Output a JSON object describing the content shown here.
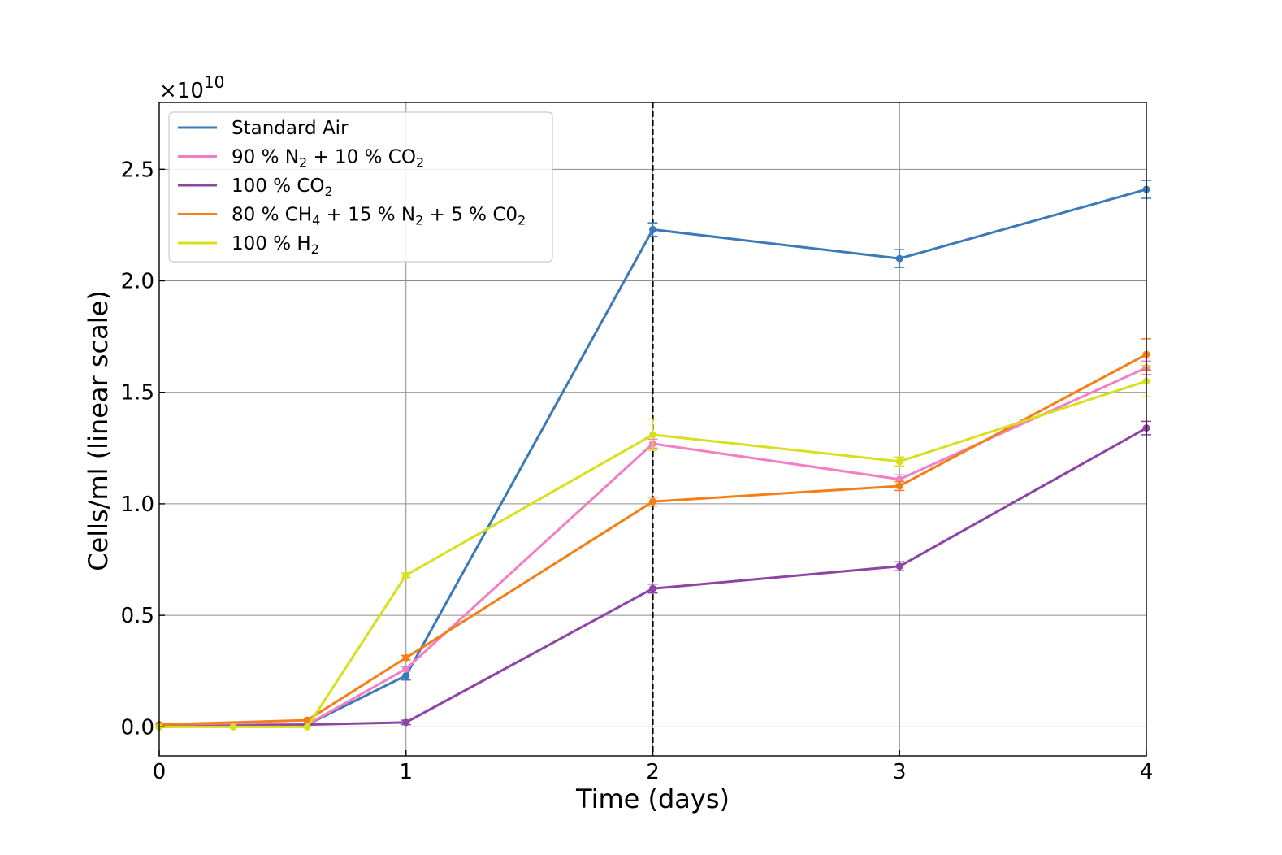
{
  "chart_data": {
    "type": "line",
    "title": "",
    "xlabel": "Time (days)",
    "ylabel": "Cells/ml (linear scale)",
    "y_multiplier_base": "×10",
    "y_multiplier_exp": "10",
    "xlim": [
      0,
      4
    ],
    "ylim": [
      -0.13,
      2.8
    ],
    "x_ticks": [
      0,
      1,
      2,
      3,
      4
    ],
    "x_tick_labels": [
      "0",
      "1",
      "2",
      "3",
      "4"
    ],
    "y_ticks": [
      0.0,
      0.5,
      1.0,
      1.5,
      2.0,
      2.5
    ],
    "y_tick_labels": [
      "0.0",
      "0.5",
      "1.0",
      "1.5",
      "2.0",
      "2.5"
    ],
    "grid": true,
    "vline_x": 2,
    "legend_position": "top-left",
    "series": [
      {
        "name": "Standard Air",
        "label": {
          "parts": [
            {
              "t": "Standard Air"
            }
          ]
        },
        "color": "#3a7ab8",
        "x": [
          0,
          0.6,
          1,
          2,
          3,
          4
        ],
        "values": [
          0.01,
          0.01,
          0.23,
          2.23,
          2.1,
          2.41
        ],
        "err": [
          0,
          0,
          0.02,
          0.03,
          0.04,
          0.04
        ]
      },
      {
        "name": "90 % N2 + 10 % CO2",
        "label": {
          "parts": [
            {
              "t": "90 % N"
            },
            {
              "t": "2",
              "sub": true
            },
            {
              "t": " + 10 % CO"
            },
            {
              "t": "2",
              "sub": true
            }
          ]
        },
        "color": "#f27fc6",
        "x": [
          0,
          0.6,
          1,
          2,
          3,
          4
        ],
        "values": [
          0.01,
          0.01,
          0.26,
          1.27,
          1.11,
          1.61
        ],
        "err": [
          0,
          0,
          0.01,
          0.02,
          0.02,
          0.03
        ]
      },
      {
        "name": "100 % CO2",
        "label": {
          "parts": [
            {
              "t": "100 % CO"
            },
            {
              "t": "2",
              "sub": true
            }
          ]
        },
        "color": "#8e44a4",
        "x": [
          0,
          0.6,
          1,
          2,
          3,
          4
        ],
        "values": [
          0.0,
          0.01,
          0.02,
          0.62,
          0.72,
          1.34
        ],
        "err": [
          0,
          0,
          0.01,
          0.02,
          0.02,
          0.03
        ]
      },
      {
        "name": "80 % CH4 + 15 % N2 + 5 % C02",
        "label": {
          "parts": [
            {
              "t": "80 % CH"
            },
            {
              "t": "4",
              "sub": true
            },
            {
              "t": " + 15 % N"
            },
            {
              "t": "2",
              "sub": true
            },
            {
              "t": " + 5 % C0"
            },
            {
              "t": "2",
              "sub": true
            }
          ]
        },
        "color": "#f47f17",
        "x": [
          0,
          0.6,
          1,
          2,
          3,
          4
        ],
        "values": [
          0.01,
          0.03,
          0.31,
          1.01,
          1.08,
          1.67
        ],
        "err": [
          0,
          0,
          0.01,
          0.02,
          0.02,
          0.07
        ]
      },
      {
        "name": "100 % H2",
        "label": {
          "parts": [
            {
              "t": "100 % H"
            },
            {
              "t": "2",
              "sub": true
            }
          ]
        },
        "color": "#d8df1b",
        "x": [
          0,
          0.3,
          0.6,
          1,
          2,
          3,
          4
        ],
        "values": [
          0.0,
          0.0,
          0.0,
          0.68,
          1.31,
          1.19,
          1.55
        ],
        "err": [
          0,
          0,
          0,
          0.01,
          0.07,
          0.02,
          0.07
        ]
      }
    ]
  }
}
